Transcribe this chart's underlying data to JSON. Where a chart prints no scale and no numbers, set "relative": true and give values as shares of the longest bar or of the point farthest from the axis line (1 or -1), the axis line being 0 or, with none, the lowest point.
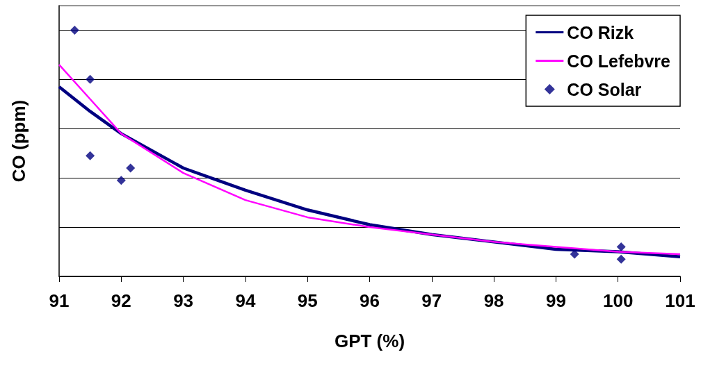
{
  "chart_data": {
    "type": "line",
    "relative": true,
    "xlabel": "GPT (%)",
    "ylabel": "CO (ppm)",
    "xlim": [
      91,
      101
    ],
    "xticks": [
      91,
      92,
      93,
      94,
      95,
      96,
      97,
      98,
      99,
      100,
      101
    ],
    "grid": "y",
    "legend": "top right",
    "series": [
      {
        "name": "CO Rizk",
        "type": "line",
        "marker": "none",
        "color": "#000080",
        "x": [
          91,
          91.5,
          92,
          93,
          94,
          95,
          96,
          97,
          98,
          99,
          100,
          101
        ],
        "values": [
          0.77,
          0.67,
          0.58,
          0.44,
          0.35,
          0.27,
          0.21,
          0.17,
          0.14,
          0.11,
          0.1,
          0.08
        ]
      },
      {
        "name": "CO Lefebvre",
        "type": "line",
        "marker": "none",
        "color": "#ff00ff",
        "x": [
          91,
          91.5,
          92,
          93,
          94,
          95,
          96,
          97,
          98,
          99,
          100,
          101
        ],
        "values": [
          0.86,
          0.72,
          0.58,
          0.42,
          0.31,
          0.24,
          0.2,
          0.17,
          0.14,
          0.12,
          0.1,
          0.09
        ]
      },
      {
        "name": "CO Solar",
        "type": "scatter",
        "marker": "diamond",
        "color": "#000080",
        "x": [
          91.25,
          91.5,
          91.5,
          92.0,
          92.15,
          99.3,
          100.05,
          100.05
        ],
        "values": [
          1,
          0.8,
          0.49,
          0.39,
          0.44,
          0.09,
          0.12,
          0.07
        ]
      }
    ]
  }
}
